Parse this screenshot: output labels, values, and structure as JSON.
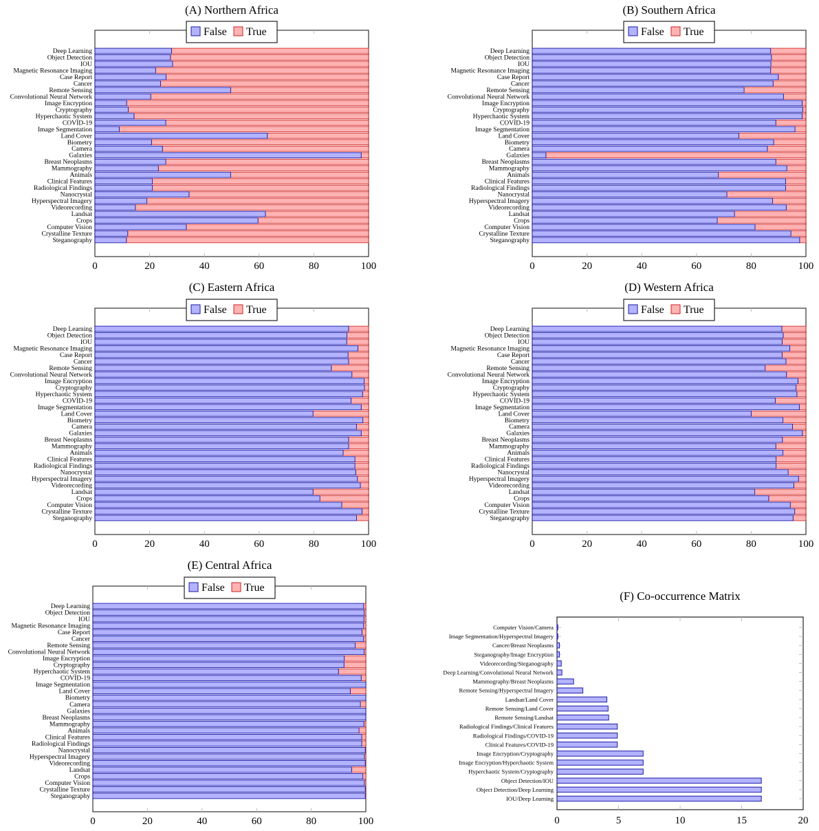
{
  "figure": {
    "legend_labels": [
      "False",
      "True"
    ],
    "colors": {
      "false_fill": "#b3b3ff",
      "false_stroke": "#1a1aa6",
      "true_fill": "#ffb3b3",
      "true_stroke": "#cc2020"
    }
  },
  "chart_data": [
    {
      "id": "A",
      "type": "bar",
      "orientation": "horizontal-stacked",
      "title": "(A) Northern Africa",
      "legend": {
        "entries": [
          "False",
          "True"
        ],
        "placement": "top-center"
      },
      "xlim": [
        0,
        100
      ],
      "xticks": [
        0,
        20,
        40,
        60,
        80,
        100
      ],
      "categories": [
        "Deep Learning",
        "Object Detection",
        "IOU",
        "Magnetic Resonance Imaging",
        "Case Report",
        "Cancer",
        "Remote Sensing",
        "Convolutional Neural Network",
        "Image Encryption",
        "Cryptography",
        "Hyperchaotic System",
        "COVID-19",
        "Image Segmentation",
        "Land Cover",
        "Biometry",
        "Camera",
        "Galaxies",
        "Breast Neoplasms",
        "Mammography",
        "Animals",
        "Clinical Features",
        "Radiological Findings",
        "Nanocrystal",
        "Hyperspectral Imagery",
        "Videorecording",
        "Landsat",
        "Crops",
        "Computer Vision",
        "Crystalline Texture",
        "Steganography"
      ],
      "series": [
        {
          "name": "False",
          "values": [
            28,
            27.6,
            28.4,
            22.2,
            26,
            24,
            49.6,
            20.4,
            11.6,
            12.2,
            14.3,
            25.9,
            8.9,
            63,
            20.7,
            24.7,
            97.3,
            25.9,
            23.2,
            49.6,
            21,
            21,
            34.4,
            19,
            14.8,
            62.3,
            59.6,
            33.4,
            12,
            11.5
          ]
        },
        {
          "name": "True",
          "values": [
            72,
            72.4,
            71.6,
            77.8,
            74,
            76,
            50.4,
            79.6,
            88.4,
            87.8,
            85.7,
            74.1,
            91.1,
            37,
            79.3,
            75.3,
            2.7,
            74.1,
            76.8,
            50.4,
            79,
            79,
            65.6,
            81,
            85.2,
            37.7,
            40.4,
            66.6,
            88,
            88.5
          ]
        }
      ]
    },
    {
      "id": "B",
      "type": "bar",
      "orientation": "horizontal-stacked",
      "title": "(B) Southern Africa",
      "legend": {
        "entries": [
          "False",
          "True"
        ],
        "placement": "top-center"
      },
      "xlim": [
        0,
        100
      ],
      "xticks": [
        0,
        20,
        40,
        60,
        80,
        100
      ],
      "categories": [
        "Deep Learning",
        "Object Detection",
        "IOU",
        "Magnetic Resonance Imaging",
        "Case Report",
        "Cancer",
        "Remote Sensing",
        "Convolutional Neural Network",
        "Image Encryption",
        "Cryptography",
        "Hyperchaotic System",
        "COVID-19",
        "Image Segmentation",
        "Land Cover",
        "Biometry",
        "Camera",
        "Galaxies",
        "Breast Neoplasms",
        "Mammography",
        "Animals",
        "Clinical Features",
        "Radiological Findings",
        "Nanocrystal",
        "Hyperspectral Imagery",
        "Videorecording",
        "Landsat",
        "Crops",
        "Computer Vision",
        "Crystalline Texture",
        "Steganography"
      ],
      "series": [
        {
          "name": "False",
          "values": [
            87.1,
            87.4,
            87.2,
            87.1,
            89.9,
            88,
            77.4,
            91.8,
            98.6,
            98.8,
            98.6,
            89,
            96,
            75.5,
            88.2,
            85.9,
            5,
            89,
            93,
            68,
            92.6,
            92.6,
            71.1,
            87.8,
            92.8,
            73.9,
            67.6,
            81.4,
            94.5,
            97.7
          ]
        },
        {
          "name": "True",
          "values": [
            12.9,
            12.6,
            12.8,
            12.9,
            10.1,
            12,
            22.6,
            8.2,
            1.4,
            1.2,
            1.4,
            11,
            4,
            24.5,
            11.8,
            14.1,
            95,
            11,
            7,
            32,
            7.4,
            7.4,
            28.9,
            12.2,
            7.2,
            26.1,
            32.4,
            18.6,
            5.5,
            2.3
          ]
        }
      ]
    },
    {
      "id": "C",
      "type": "bar",
      "orientation": "horizontal-stacked",
      "title": "(C) Eastern Africa",
      "legend": {
        "entries": [
          "False",
          "True"
        ],
        "placement": "top-center"
      },
      "xlim": [
        0,
        100
      ],
      "xticks": [
        0,
        20,
        40,
        60,
        80,
        100
      ],
      "categories": [
        "Deep Learning",
        "Object Detection",
        "IOU",
        "Magnetic Resonance Imaging",
        "Case Report",
        "Cancer",
        "Remote Sensing",
        "Convolutional Neural Network",
        "Image Encryption",
        "Cryptography",
        "Hyperchaotic System",
        "COVID-19",
        "Image Segmentation",
        "Land Cover",
        "Biometry",
        "Camera",
        "Galaxies",
        "Breast Neoplasms",
        "Mammography",
        "Animals",
        "Clinical Features",
        "Radiological Findings",
        "Nanocrystal",
        "Hyperspectral Imagery",
        "Videorecording",
        "Landsat",
        "Crops",
        "Computer Vision",
        "Crystalline Texture",
        "Steganography"
      ],
      "series": [
        {
          "name": "False",
          "values": [
            92.7,
            92.1,
            92,
            96.1,
            92.5,
            92.7,
            86.4,
            93.9,
            98.4,
            98.5,
            97.8,
            93.6,
            97.3,
            79.7,
            97.9,
            95.6,
            97.3,
            92.7,
            92.7,
            90.7,
            95,
            95,
            95.3,
            95.9,
            97,
            79.7,
            82.2,
            90.2,
            97.6,
            95.6
          ]
        },
        {
          "name": "True",
          "values": [
            7.3,
            7.9,
            8,
            3.9,
            7.5,
            7.3,
            13.6,
            6.1,
            1.6,
            1.5,
            2.2,
            6.4,
            2.7,
            20.3,
            2.1,
            4.4,
            2.7,
            7.3,
            7.3,
            9.3,
            5,
            5,
            4.7,
            4.1,
            3,
            20.3,
            17.8,
            9.8,
            2.4,
            4.4
          ]
        }
      ]
    },
    {
      "id": "D",
      "type": "bar",
      "orientation": "horizontal-stacked",
      "title": "(D) Western Africa",
      "legend": {
        "entries": [
          "False",
          "True"
        ],
        "placement": "top-center"
      },
      "xlim": [
        0,
        100
      ],
      "xticks": [
        0,
        20,
        40,
        60,
        80,
        100
      ],
      "categories": [
        "Deep Learning",
        "Object Detection",
        "IOU",
        "Magnetic Resonance Imaging",
        "Case Report",
        "Cancer",
        "Remote Sensing",
        "Convolutional Neural Network",
        "Image Encryption",
        "Cryptography",
        "Hyperchaotic System",
        "COVID-19",
        "Image Segmentation",
        "Land Cover",
        "Biometry",
        "Camera",
        "Galaxies",
        "Breast Neoplasms",
        "Mammography",
        "Animals",
        "Clinical Features",
        "Radiological Findings",
        "Nanocrystal",
        "Hyperspectral Imagery",
        "Videorecording",
        "Landsat",
        "Crops",
        "Computer Vision",
        "Crystalline Texture",
        "Steganography"
      ],
      "series": [
        {
          "name": "False",
          "values": [
            91.2,
            91.7,
            91.3,
            94.1,
            91.3,
            92.7,
            85.1,
            92.9,
            97.1,
            96.4,
            96.7,
            88.8,
            97.6,
            80,
            91.6,
            95.1,
            98.7,
            91.4,
            89,
            91.6,
            89.1,
            89.1,
            93.5,
            97.3,
            95.6,
            81.3,
            86.4,
            94.3,
            95.9,
            95.3
          ]
        },
        {
          "name": "True",
          "values": [
            8.8,
            8.3,
            8.7,
            5.9,
            8.7,
            7.3,
            14.9,
            7.1,
            2.9,
            3.6,
            3.3,
            11.2,
            2.4,
            20,
            8.4,
            4.9,
            1.3,
            8.6,
            11,
            8.4,
            10.9,
            10.9,
            6.5,
            2.7,
            4.4,
            18.7,
            13.6,
            5.7,
            4.1,
            4.7
          ]
        }
      ]
    },
    {
      "id": "E",
      "type": "bar",
      "orientation": "horizontal-stacked",
      "title": "(E) Central Africa",
      "legend": {
        "entries": [
          "False",
          "True"
        ],
        "placement": "top-center"
      },
      "xlim": [
        0,
        100
      ],
      "xticks": [
        0,
        20,
        40,
        60,
        80,
        100
      ],
      "categories": [
        "Deep Learning",
        "Object Detection",
        "IOU",
        "Magnetic Resonance Imaging",
        "Case Report",
        "Cancer",
        "Remote Sensing",
        "Convolutional Neural Network",
        "Image Encryption",
        "Cryptography",
        "Hyperchaotic System",
        "COVID-19",
        "Image Segmentation",
        "Land Cover",
        "Biometry",
        "Camera",
        "Galaxies",
        "Breast Neoplasms",
        "Mammography",
        "Animals",
        "Clinical Features",
        "Radiological Findings",
        "Nanocrystal",
        "Hyperspectral Imagery",
        "Videorecording",
        "Landsat",
        "Crops",
        "Computer Vision",
        "Crystalline Texture",
        "Steganography"
      ],
      "series": [
        {
          "name": "False",
          "values": [
            99.2,
            99.4,
            99.3,
            99.2,
            98.6,
            99.2,
            96.1,
            99.4,
            92.1,
            92,
            90,
            98.3,
            100,
            94.3,
            100,
            98,
            100,
            100,
            99.3,
            97.5,
            98.5,
            98.5,
            99.8,
            99.5,
            99.8,
            94.8,
            98.9,
            99.5,
            99.8,
            99.8
          ]
        },
        {
          "name": "True",
          "values": [
            0.8,
            0.6,
            0.7,
            0.8,
            1.4,
            0.8,
            3.9,
            0.6,
            7.9,
            8,
            10,
            1.7,
            0,
            5.7,
            0,
            2,
            0,
            0,
            0.7,
            2.5,
            1.5,
            1.5,
            0.2,
            0.5,
            0.2,
            5.2,
            1.1,
            0.5,
            0.2,
            0.2
          ]
        }
      ]
    },
    {
      "id": "F",
      "type": "bar",
      "orientation": "horizontal",
      "title": "(F) Co-occurrence Matrix",
      "xlim": [
        0,
        20
      ],
      "xticks": [
        0,
        5,
        10,
        15,
        20
      ],
      "categories": [
        "Computer Vision/Camera",
        "Image Segmentation/Hyperspectral Imagery",
        "Cancer/Breast Neoplasms",
        "Steganography/Image Encryption",
        "Videorecording/Steganography",
        "Deep Learning/Convolutional Neural Network",
        "Mammography/Breast Neoplasms",
        "Remote Sensing/Hyperspectral Imagery",
        "Landsat/Land Cover",
        "Remote Sensing/Land Cover",
        "Remote Sensing/Landsat",
        "Radiological Findings/Clinical Features",
        "Radiological Findings/COVID-19",
        "Clinical Features/COVID-19",
        "Image Encryption/Cryptography",
        "Image Encryption/Hyperchaotic System",
        "Hyperchaotic System/Cryptography",
        "Object Detection/IOU",
        "Object Detection/Deep Learning",
        "IOU/Deep Learning"
      ],
      "values": [
        0.05,
        0.07,
        0.2,
        0.2,
        0.35,
        0.4,
        1.35,
        2.1,
        4.05,
        4.15,
        4.2,
        4.9,
        4.9,
        4.9,
        7,
        7,
        7,
        16.6,
        16.6,
        16.6
      ]
    }
  ]
}
